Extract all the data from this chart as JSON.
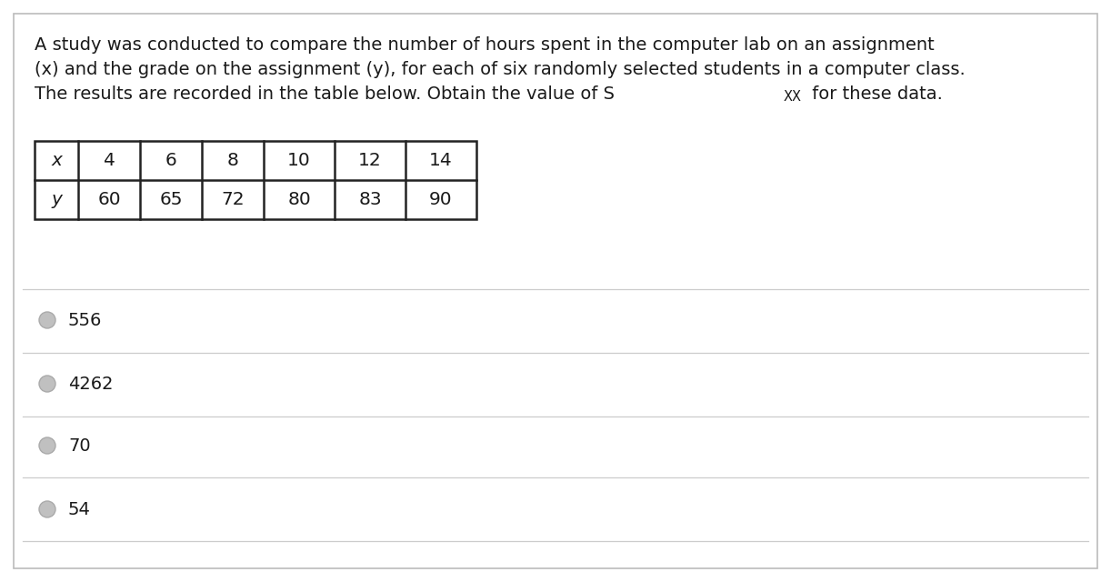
{
  "title_line1": "A study was conducted to compare the number of hours spent in the computer lab on an assignment",
  "title_line2": "(x) and the grade on the assignment (y), for each of six randomly selected students in a computer class.",
  "title_line3_pre": "The results are recorded in the table below. Obtain the value of S",
  "title_line3_sub": "XX",
  "title_line3_post": " for these data.",
  "table_x_label": "x",
  "table_y_label": "y",
  "x_values": [
    "4",
    "6",
    "8",
    "10",
    "12",
    "14"
  ],
  "y_values": [
    "60",
    "65",
    "72",
    "80",
    "83",
    "90"
  ],
  "options": [
    "556",
    "4262",
    "70",
    "54"
  ],
  "bg_color": "#ffffff",
  "text_color": "#1a1a1a",
  "table_border_color": "#222222",
  "circle_color": "#c0c0c0",
  "separator_line_color": "#cccccc",
  "outer_border_color": "#bbbbbb",
  "font_size_title": 14.0,
  "font_size_table": 14.5,
  "font_size_options": 14.0,
  "font_size_sub": 10.5
}
